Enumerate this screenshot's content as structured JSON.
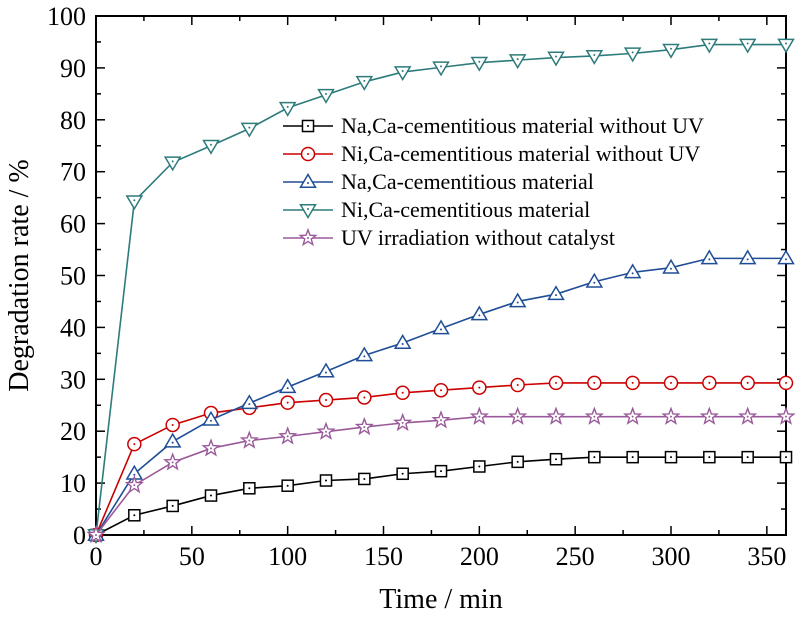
{
  "chart_data": {
    "type": "line",
    "xlabel": "Time / min",
    "ylabel": "Degradation rate / %",
    "xlim": [
      0,
      360
    ],
    "ylim": [
      0,
      100
    ],
    "xticks": [
      0,
      50,
      100,
      150,
      200,
      250,
      300,
      350
    ],
    "yticks": [
      0,
      10,
      20,
      30,
      40,
      50,
      60,
      70,
      80,
      90,
      100
    ],
    "grid": false,
    "legend_position": "center-right",
    "x": [
      0,
      20,
      40,
      60,
      80,
      100,
      120,
      140,
      160,
      180,
      200,
      220,
      240,
      260,
      280,
      300,
      320,
      340,
      360
    ],
    "series": [
      {
        "name": "Na,Ca-cementitious material without UV",
        "color": "#000000",
        "marker": "square",
        "values": [
          0,
          3.8,
          5.6,
          7.6,
          9.0,
          9.5,
          10.5,
          10.8,
          11.8,
          12.3,
          13.2,
          14.1,
          14.6,
          15.0,
          15.0,
          15.0,
          15.0,
          15.0,
          15.0
        ]
      },
      {
        "name": "Ni,Ca-cementitious material without UV",
        "color": "#cc0000",
        "marker": "circle",
        "values": [
          0,
          17.5,
          21.2,
          23.5,
          24.5,
          25.5,
          26.0,
          26.5,
          27.4,
          27.9,
          28.4,
          28.9,
          29.3,
          29.3,
          29.3,
          29.3,
          29.3,
          29.3,
          29.3
        ]
      },
      {
        "name": "Na,Ca-cementitious material",
        "color": "#1f4e96",
        "marker": "triangle-up",
        "values": [
          0,
          11.8,
          18.0,
          22.2,
          25.4,
          28.5,
          31.5,
          34.6,
          37.0,
          39.8,
          42.5,
          45.0,
          46.4,
          48.8,
          50.6,
          51.5,
          53.3,
          53.3,
          53.3
        ]
      },
      {
        "name": "Ni,Ca-cementitious material",
        "color": "#2e7b7b",
        "marker": "triangle-down",
        "values": [
          0,
          64.3,
          71.8,
          75.0,
          78.3,
          82.3,
          84.8,
          87.3,
          89.2,
          90.1,
          91.0,
          91.5,
          92.0,
          92.3,
          92.8,
          93.5,
          94.5,
          94.5,
          94.5
        ]
      },
      {
        "name": "UV irradiation without catalyst",
        "color": "#9a5a9a",
        "marker": "star",
        "values": [
          0,
          9.6,
          14.0,
          16.7,
          18.2,
          19.0,
          19.9,
          20.8,
          21.6,
          22.1,
          22.8,
          22.8,
          22.8,
          22.8,
          22.8,
          22.8,
          22.8,
          22.8,
          22.8
        ]
      }
    ]
  }
}
